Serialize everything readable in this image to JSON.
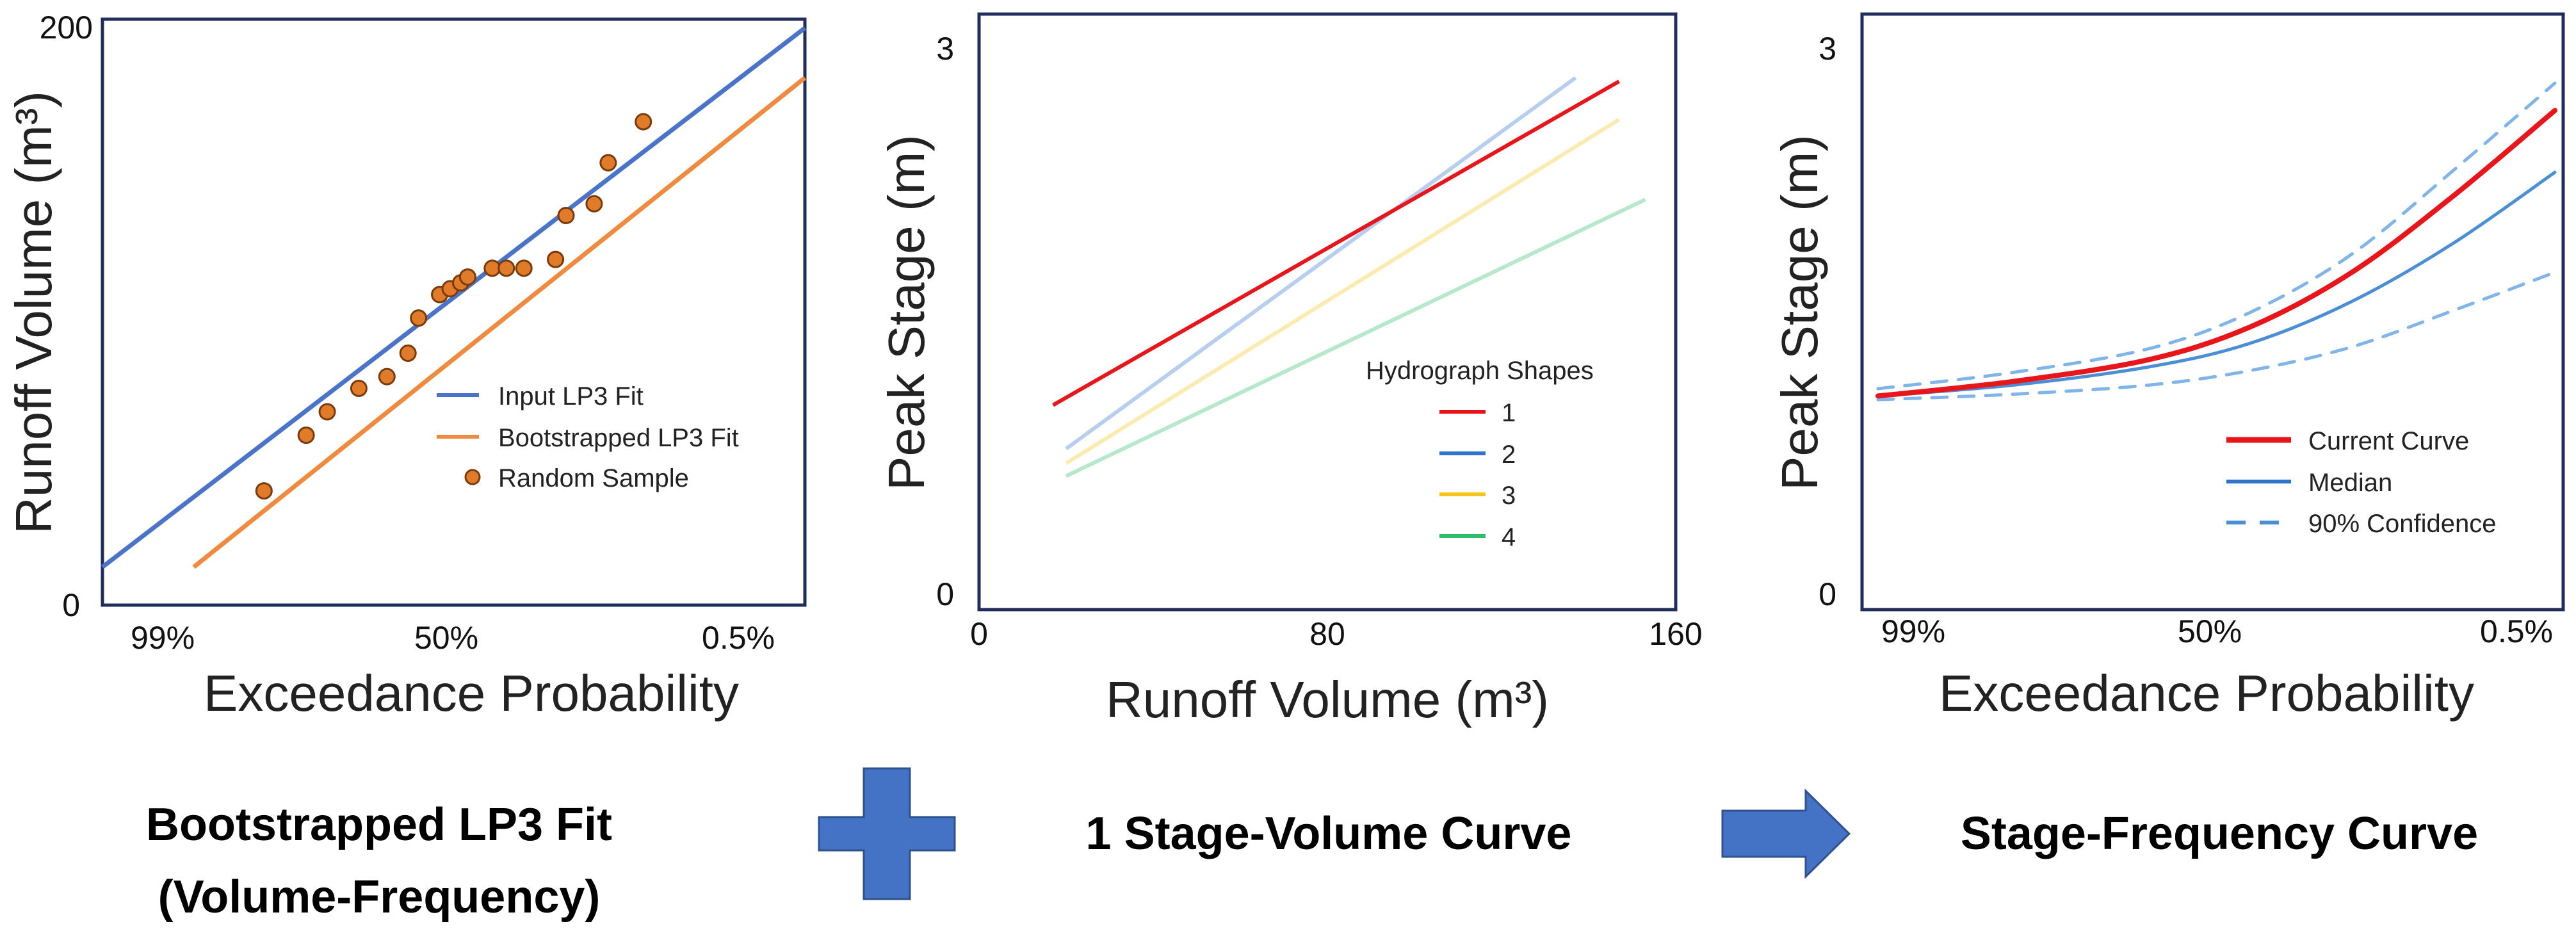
{
  "colors": {
    "frame": "#1f2d5c",
    "input_lp3": "#4a74c9",
    "bootstrapped_lp3": "#f08a3e",
    "sample_fill": "#e07b2a",
    "sample_stroke": "#7a3a0a",
    "shape1": "#e8151b",
    "shape2": "#2e75d0",
    "shape3": "#f5c518",
    "shape4": "#2ebd6b",
    "current_curve": "#e8151b",
    "median": "#4a8fd6",
    "confidence": "#7fb5e8",
    "shape_arrow": "#4472c4"
  },
  "chart_data": [
    {
      "type": "scatter",
      "id": "volume-frequency",
      "xlabel": "Exceedance Probability",
      "ylabel": "Runoff Volume (m³)",
      "ylim": [
        0,
        200
      ],
      "x_ticks": [
        "99%",
        "50%",
        "0.5%"
      ],
      "y_ticks": [
        "0",
        "200"
      ],
      "legend": {
        "input": "Input LP3 Fit",
        "bootstrapped": "Bootstrapped LP3 Fit",
        "sample": "Random Sample"
      },
      "series": [
        {
          "name": "Input LP3 Fit",
          "kind": "line",
          "x": [
            0,
            1
          ],
          "y": [
            13,
            197
          ]
        },
        {
          "name": "Bootstrapped LP3 Fit",
          "kind": "line",
          "x": [
            0.13,
            1
          ],
          "y": [
            13,
            180
          ]
        },
        {
          "name": "Random Sample",
          "kind": "scatter",
          "x": [
            0.23,
            0.29,
            0.32,
            0.365,
            0.405,
            0.435,
            0.45,
            0.48,
            0.495,
            0.51,
            0.52,
            0.555,
            0.575,
            0.6,
            0.645,
            0.66,
            0.7,
            0.72,
            0.77
          ],
          "y": [
            39,
            58,
            66,
            74,
            78,
            86,
            98,
            106,
            108,
            110,
            112,
            115,
            115,
            115,
            118,
            133,
            137,
            151,
            165
          ]
        }
      ]
    },
    {
      "type": "line",
      "id": "stage-volume",
      "xlabel": "Runoff Volume (m³)",
      "ylabel": "Peak Stage (m)",
      "xlim": [
        0,
        160
      ],
      "ylim": [
        0,
        3
      ],
      "x_ticks": [
        "0",
        "80",
        "160"
      ],
      "y_ticks": [
        "0",
        "3"
      ],
      "legend_title": "Hydrograph Shapes",
      "series": [
        {
          "name": "1",
          "x": [
            17,
            147
          ],
          "y": [
            1.1,
            2.88
          ]
        },
        {
          "name": "2",
          "x": [
            20,
            137
          ],
          "y": [
            0.86,
            2.9
          ]
        },
        {
          "name": "3",
          "x": [
            20,
            147
          ],
          "y": [
            0.78,
            2.67
          ]
        },
        {
          "name": "4",
          "x": [
            20,
            153
          ],
          "y": [
            0.71,
            2.23
          ]
        }
      ]
    },
    {
      "type": "line",
      "id": "stage-frequency",
      "xlabel": "Exceedance Probability",
      "ylabel": "Peak Stage (m)",
      "ylim": [
        0,
        3
      ],
      "x_ticks": [
        "99%",
        "50%",
        "0.5%"
      ],
      "y_ticks": [
        "0",
        "3"
      ],
      "legend": {
        "current": "Current Curve",
        "median": "Median",
        "confidence": "90% Confidence"
      },
      "series": [
        {
          "name": "Current Curve",
          "x": [
            0,
            0.2,
            0.4,
            0.55,
            0.7,
            0.85,
            1.0
          ],
          "y": [
            1.15,
            1.23,
            1.35,
            1.53,
            1.83,
            2.25,
            2.72
          ]
        },
        {
          "name": "Median",
          "x": [
            0,
            0.2,
            0.4,
            0.55,
            0.7,
            0.85,
            1.0
          ],
          "y": [
            1.15,
            1.21,
            1.31,
            1.44,
            1.67,
            1.99,
            2.38
          ]
        },
        {
          "name": "90% Confidence",
          "x": [
            0,
            0.2,
            0.4,
            0.55,
            0.7,
            0.85,
            1.0
          ],
          "y": [
            1.19,
            1.28,
            1.41,
            1.61,
            1.93,
            2.39,
            2.87
          ]
        },
        {
          "name": "90% Confidence",
          "x": [
            0,
            0.2,
            0.4,
            0.55,
            0.7,
            0.85,
            1.0
          ],
          "y": [
            1.13,
            1.16,
            1.21,
            1.29,
            1.42,
            1.62,
            1.83
          ]
        }
      ]
    }
  ],
  "captions": {
    "left_line1": "Bootstrapped LP3 Fit",
    "left_line2": "(Volume-Frequency)",
    "middle": "1 Stage-Volume Curve",
    "right": "Stage-Frequency Curve"
  }
}
